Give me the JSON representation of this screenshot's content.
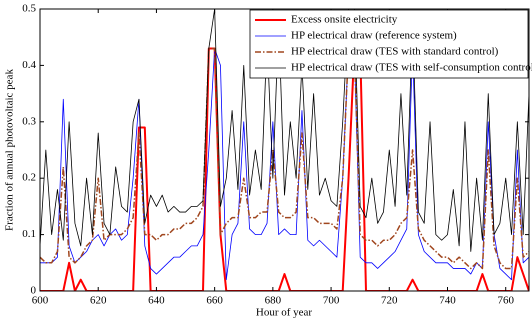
{
  "chart_data": {
    "type": "line",
    "xlabel": "Hour of year",
    "ylabel": "Fraction of annual photovoltaic peak",
    "xlim": [
      600,
      768
    ],
    "ylim": [
      0,
      0.5
    ],
    "xticks": [
      600,
      620,
      640,
      660,
      680,
      700,
      720,
      740,
      760
    ],
    "yticks": [
      0,
      0.1,
      0.2,
      0.3,
      0.4,
      0.5
    ],
    "legend": "upper right",
    "x": [
      600,
      602,
      604,
      606,
      608,
      610,
      612,
      614,
      616,
      618,
      620,
      622,
      624,
      626,
      628,
      630,
      632,
      634,
      636,
      638,
      640,
      642,
      644,
      646,
      648,
      650,
      652,
      654,
      656,
      658,
      660,
      662,
      664,
      666,
      668,
      670,
      672,
      674,
      676,
      678,
      680,
      682,
      684,
      686,
      688,
      690,
      692,
      694,
      696,
      698,
      700,
      702,
      704,
      706,
      708,
      710,
      712,
      714,
      716,
      718,
      720,
      722,
      724,
      726,
      728,
      730,
      732,
      734,
      736,
      738,
      740,
      742,
      744,
      746,
      748,
      750,
      752,
      754,
      756,
      758,
      760,
      762,
      764,
      766,
      768
    ],
    "series": [
      {
        "name": "Excess onsite electricity",
        "color": "#ff0000",
        "linewidth": 2,
        "linestyle": "solid",
        "values": [
          0,
          0,
          0,
          0,
          0,
          0.05,
          0,
          0.02,
          0,
          0,
          0,
          0,
          0,
          0,
          0,
          0,
          0,
          0.29,
          0.29,
          0,
          0,
          0,
          0,
          0,
          0,
          0,
          0,
          0,
          0,
          0.43,
          0.43,
          0.1,
          0,
          0,
          0,
          0,
          0,
          0,
          0,
          0,
          0,
          0,
          0.03,
          0,
          0,
          0,
          0,
          0,
          0,
          0,
          0,
          0,
          0,
          0.2,
          0.43,
          0.43,
          0,
          0,
          0,
          0,
          0,
          0,
          0,
          0,
          0.02,
          0,
          0,
          0,
          0,
          0,
          0,
          0,
          0,
          0,
          0,
          0,
          0.03,
          0,
          0,
          0,
          0,
          0,
          0.06,
          0.03,
          0
        ]
      },
      {
        "name": "HP electrical draw (reference system)",
        "color": "#0000ff",
        "linewidth": 0.8,
        "linestyle": "solid",
        "values": [
          0.05,
          0.05,
          0.05,
          0.06,
          0.34,
          0.08,
          0.05,
          0.06,
          0.07,
          0.09,
          0.1,
          0.08,
          0.1,
          0.11,
          0.09,
          0.1,
          0.2,
          0.34,
          0.08,
          0.04,
          0.03,
          0.04,
          0.05,
          0.06,
          0.06,
          0.07,
          0.08,
          0.08,
          0.1,
          0.25,
          0.43,
          0.4,
          0.02,
          0.1,
          0.12,
          0.3,
          0.11,
          0.1,
          0.1,
          0.12,
          0.3,
          0.1,
          0.11,
          0.1,
          0.1,
          0.32,
          0.09,
          0.08,
          0.09,
          0.08,
          0.07,
          0.06,
          0.2,
          0.43,
          0.43,
          0.06,
          0.05,
          0.05,
          0.04,
          0.05,
          0.06,
          0.07,
          0.09,
          0.11,
          0.43,
          0.1,
          0.07,
          0.06,
          0.05,
          0.05,
          0.05,
          0.04,
          0.04,
          0.04,
          0.03,
          0.05,
          0.04,
          0.3,
          0.1,
          0.04,
          0.03,
          0.02,
          0.25,
          0.05,
          0.06
        ]
      },
      {
        "name": "HP electrical draw (TES with standard control)",
        "color": "#a0461e",
        "linewidth": 1.5,
        "linestyle": "dashdot",
        "values": [
          0.06,
          0.05,
          0.05,
          0.07,
          0.22,
          0.06,
          0.05,
          0.06,
          0.08,
          0.09,
          0.2,
          0.09,
          0.1,
          0.1,
          0.1,
          0.11,
          0.13,
          0.28,
          0.1,
          0.1,
          0.09,
          0.1,
          0.1,
          0.11,
          0.11,
          0.12,
          0.12,
          0.13,
          0.15,
          0.43,
          0.43,
          0.1,
          0.12,
          0.13,
          0.13,
          0.2,
          0.13,
          0.13,
          0.14,
          0.14,
          0.25,
          0.14,
          0.13,
          0.13,
          0.14,
          0.28,
          0.13,
          0.13,
          0.12,
          0.12,
          0.12,
          0.11,
          0.2,
          0.43,
          0.43,
          0.1,
          0.09,
          0.09,
          0.08,
          0.09,
          0.09,
          0.1,
          0.12,
          0.13,
          0.25,
          0.11,
          0.09,
          0.08,
          0.07,
          0.06,
          0.06,
          0.05,
          0.06,
          0.05,
          0.04,
          0.05,
          0.04,
          0.25,
          0.08,
          0.05,
          0.04,
          0.04,
          0.2,
          0.06,
          0.07
        ]
      },
      {
        "name": "HP electrical draw (TES with self-consumption control)",
        "color": "#000000",
        "linewidth": 0.8,
        "linestyle": "solid",
        "values": [
          0.08,
          0.25,
          0.1,
          0.18,
          0.09,
          0.3,
          0.12,
          0.08,
          0.2,
          0.1,
          0.28,
          0.12,
          0.1,
          0.22,
          0.15,
          0.14,
          0.3,
          0.34,
          0.12,
          0.17,
          0.15,
          0.17,
          0.14,
          0.15,
          0.14,
          0.14,
          0.15,
          0.15,
          0.16,
          0.43,
          0.5,
          0.15,
          0.2,
          0.32,
          0.18,
          0.4,
          0.17,
          0.25,
          0.18,
          0.45,
          0.2,
          0.48,
          0.17,
          0.3,
          0.2,
          0.4,
          0.18,
          0.35,
          0.17,
          0.2,
          0.16,
          0.15,
          0.3,
          0.5,
          0.5,
          0.15,
          0.13,
          0.2,
          0.12,
          0.14,
          0.25,
          0.15,
          0.35,
          0.17,
          0.48,
          0.14,
          0.12,
          0.3,
          0.1,
          0.09,
          0.1,
          0.18,
          0.08,
          0.3,
          0.07,
          0.2,
          0.09,
          0.35,
          0.1,
          0.12,
          0.2,
          0.1,
          0.3,
          0.1,
          0.35
        ]
      }
    ]
  }
}
